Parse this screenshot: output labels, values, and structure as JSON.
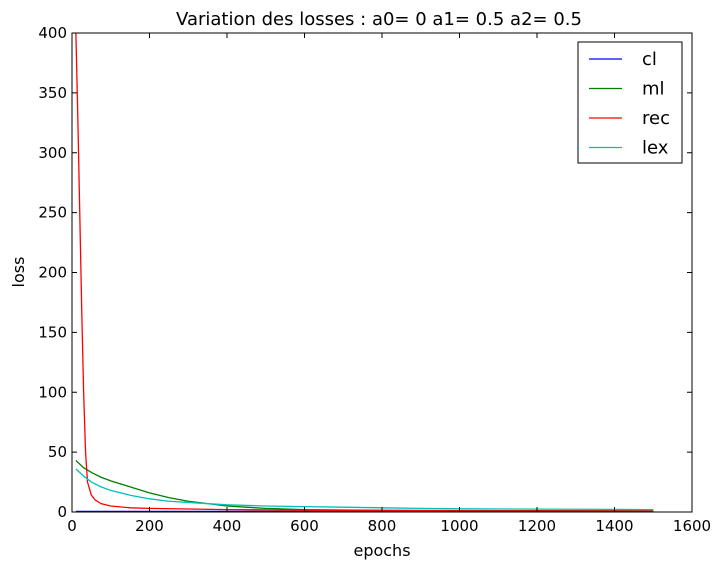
{
  "chart_data": {
    "type": "line",
    "title": "Variation des losses : a0= 0 a1= 0.5 a2= 0.5",
    "xlabel": "epochs",
    "ylabel": "loss",
    "xlim": [
      0,
      1600
    ],
    "ylim": [
      0,
      400
    ],
    "xticks": [
      "0",
      "200",
      "400",
      "600",
      "800",
      "1000",
      "1200",
      "1400",
      "1600"
    ],
    "yticks": [
      "0",
      "50",
      "100",
      "150",
      "200",
      "250",
      "300",
      "350",
      "400"
    ],
    "legend_position": "top-right",
    "grid": false,
    "series": [
      {
        "name": "cl",
        "color": "#0000ff",
        "x": [
          10,
          100,
          200,
          400,
          600,
          800,
          1000,
          1200,
          1500
        ],
        "y": [
          0.5,
          0.5,
          0.5,
          0.5,
          0.5,
          0.5,
          0.5,
          0.5,
          0.5
        ]
      },
      {
        "name": "ml",
        "color": "#008000",
        "x": [
          10,
          30,
          50,
          75,
          100,
          150,
          200,
          250,
          300,
          350,
          400,
          450,
          500,
          550,
          600,
          700,
          800,
          900,
          1000,
          1200,
          1400,
          1500
        ],
        "y": [
          43,
          37,
          33,
          29,
          26,
          21,
          16,
          12,
          9,
          7,
          5,
          4,
          3,
          2.5,
          2,
          1.6,
          1.4,
          1.3,
          1.2,
          1.1,
          1.0,
          1.0
        ]
      },
      {
        "name": "rec",
        "color": "#ff0000",
        "x": [
          10,
          15,
          20,
          25,
          30,
          35,
          40,
          50,
          60,
          75,
          100,
          150,
          200,
          300,
          400,
          600,
          800,
          1000,
          1500
        ],
        "y": [
          400,
          330,
          250,
          170,
          100,
          50,
          25,
          14,
          10,
          7,
          5,
          3.5,
          3,
          2.5,
          2,
          1.5,
          1.2,
          1.0,
          0.8
        ]
      },
      {
        "name": "lex",
        "color": "#00bfbf",
        "x": [
          10,
          30,
          50,
          75,
          100,
          150,
          200,
          250,
          300,
          400,
          500,
          600,
          700,
          800,
          900,
          1000,
          1200,
          1400,
          1500
        ],
        "y": [
          36,
          30,
          25,
          21,
          18,
          14,
          11,
          9,
          8,
          6,
          5,
          4.5,
          4,
          3.5,
          3,
          2.7,
          2.4,
          2.2,
          2.0
        ]
      }
    ]
  }
}
